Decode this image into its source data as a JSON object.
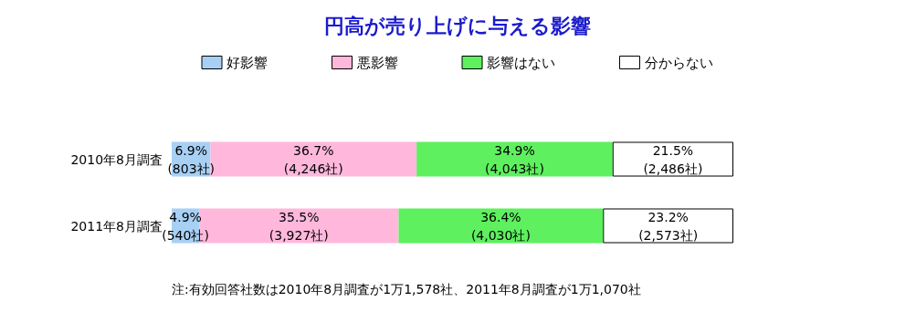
{
  "chart_data": {
    "type": "bar",
    "orientation": "horizontal",
    "stacked": true,
    "title": "円高が売り上げに与える影響",
    "categories": [
      "2010年8月調査",
      "2011年8月調査"
    ],
    "series": [
      {
        "name": "好影響",
        "color": "#a8d0f5",
        "values": [
          6.9,
          4.9
        ],
        "value_labels": [
          "6.9%\n(803社)",
          "4.9%\n(540社)"
        ]
      },
      {
        "name": "悪影響",
        "color": "#ffb8dc",
        "values": [
          36.7,
          35.5
        ],
        "value_labels": [
          "36.7%\n(4,246社)",
          "35.5%\n(3,927社)"
        ]
      },
      {
        "name": "影響はない",
        "color": "#5ef05e",
        "values": [
          34.9,
          36.4
        ],
        "value_labels": [
          "34.9%\n(4,043社)",
          "36.4%\n(4,030社)"
        ]
      },
      {
        "name": "分からない",
        "color": "#ffffff",
        "values": [
          21.5,
          23.2
        ],
        "value_labels": [
          "21.5%\n(2,486社)",
          "23.2%\n(2,573社)"
        ]
      }
    ],
    "tick_labels": "y",
    "legend": "top",
    "annotations": [
      "注:有効回答社数は2010年8月調査が1万1,578社、2011年8月調査が1万1,070社"
    ]
  }
}
